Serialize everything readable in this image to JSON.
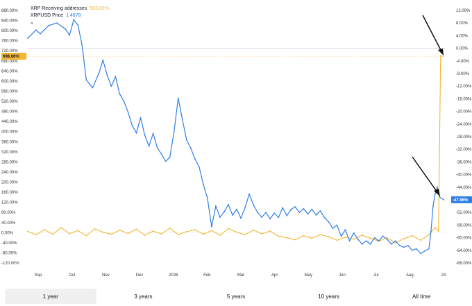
{
  "legend": {
    "series_a_name": "XRP Receiving addresses",
    "series_a_value": "503.02%",
    "series_b_name": "XRPUSD Price",
    "series_b_value": "1.4878",
    "collapse_glyph": "^"
  },
  "colors": {
    "series_a": "#f2b632",
    "series_b": "#2f7ee6",
    "arrow": "#111111",
    "tab_active_bg": "#f0f0f0"
  },
  "tabs": [
    {
      "label": "1 year",
      "active": true
    },
    {
      "label": "3 years",
      "active": false
    },
    {
      "label": "5 years",
      "active": false
    },
    {
      "label": "10 years",
      "active": false
    },
    {
      "label": "All time",
      "active": false
    }
  ],
  "chart_data": {
    "type": "line",
    "grid": false,
    "x_labels": [
      "Sep",
      "Oct",
      "Nov",
      "Dec",
      "2026",
      "Feb",
      "Mar",
      "Apr",
      "May",
      "Jun",
      "Jul",
      "Aug",
      "23"
    ],
    "left_axis": {
      "ticks": [
        "880.00%",
        "840.00%",
        "800.00%",
        "760.00%",
        "720.00%",
        "680.00%",
        "640.00%",
        "600.00%",
        "560.00%",
        "520.00%",
        "480.00%",
        "440.00%",
        "400.00%",
        "360.00%",
        "320.00%",
        "280.00%",
        "240.00%",
        "200.00%",
        "160.00%",
        "120.00%",
        "80.00%",
        "40.00%",
        "0.00%",
        "-40.00%",
        "-80.00%",
        "-120.00%"
      ],
      "range": [
        -120,
        880
      ],
      "current_tag": "698.66%"
    },
    "right_axis": {
      "ticks": [
        "12.00%",
        "8.00%",
        "4.00%",
        "0.00%",
        "-4.00%",
        "-8.00%",
        "-12.00%",
        "-16.00%",
        "-20.00%",
        "-24.00%",
        "-28.00%",
        "-32.00%",
        "-36.00%",
        "-40.00%",
        "-44.00%",
        "-48.00%",
        "-52.00%",
        "-56.00%",
        "-60.00%",
        "-64.00%",
        "-68.00%"
      ],
      "range": [
        -68,
        12
      ],
      "current_tag": "-47.96%"
    },
    "series": [
      {
        "name": "XRP Receiving addresses",
        "axis": "left",
        "baseline_pct": 0,
        "points": [
          [
            0,
            5
          ],
          [
            0.02,
            -8
          ],
          [
            0.04,
            12
          ],
          [
            0.06,
            -6
          ],
          [
            0.08,
            20
          ],
          [
            0.1,
            -4
          ],
          [
            0.12,
            8
          ],
          [
            0.14,
            -12
          ],
          [
            0.16,
            15
          ],
          [
            0.18,
            2
          ],
          [
            0.2,
            -6
          ],
          [
            0.22,
            10
          ],
          [
            0.24,
            -3
          ],
          [
            0.26,
            14
          ],
          [
            0.28,
            -10
          ],
          [
            0.3,
            6
          ],
          [
            0.32,
            -5
          ],
          [
            0.34,
            18
          ],
          [
            0.36,
            -8
          ],
          [
            0.38,
            4
          ],
          [
            0.4,
            12
          ],
          [
            0.42,
            -6
          ],
          [
            0.44,
            8
          ],
          [
            0.46,
            -10
          ],
          [
            0.48,
            16
          ],
          [
            0.5,
            2
          ],
          [
            0.52,
            -8
          ],
          [
            0.54,
            10
          ],
          [
            0.56,
            -4
          ],
          [
            0.58,
            6
          ],
          [
            0.6,
            -14
          ],
          [
            0.62,
            -20
          ],
          [
            0.64,
            -28
          ],
          [
            0.66,
            -12
          ],
          [
            0.68,
            -22
          ],
          [
            0.7,
            -8
          ],
          [
            0.72,
            -16
          ],
          [
            0.74,
            -30
          ],
          [
            0.76,
            -18
          ],
          [
            0.78,
            -26
          ],
          [
            0.8,
            -10
          ],
          [
            0.82,
            -22
          ],
          [
            0.84,
            -34
          ],
          [
            0.86,
            -20
          ],
          [
            0.88,
            -40
          ],
          [
            0.9,
            -24
          ],
          [
            0.92,
            -12
          ],
          [
            0.94,
            -30
          ],
          [
            0.96,
            -8
          ],
          [
            0.975,
            20
          ],
          [
            0.983,
            5
          ],
          [
            0.988,
            700
          ],
          [
            0.995,
            698.66
          ]
        ]
      },
      {
        "name": "XRPUSD Price",
        "axis": "right",
        "points": [
          [
            0,
            3.2
          ],
          [
            0.02,
            5.8
          ],
          [
            0.03,
            4.6
          ],
          [
            0.05,
            7.2
          ],
          [
            0.07,
            8.0
          ],
          [
            0.09,
            6.1
          ],
          [
            0.1,
            4.2
          ],
          [
            0.11,
            9.0
          ],
          [
            0.12,
            7.4
          ],
          [
            0.13,
            1.0
          ],
          [
            0.14,
            -10.0
          ],
          [
            0.155,
            -12.5
          ],
          [
            0.17,
            -8.0
          ],
          [
            0.18,
            -3.8
          ],
          [
            0.19,
            -8.5
          ],
          [
            0.2,
            -12.0
          ],
          [
            0.21,
            -9.0
          ],
          [
            0.22,
            -14.5
          ],
          [
            0.23,
            -16.8
          ],
          [
            0.24,
            -20.2
          ],
          [
            0.25,
            -24.5
          ],
          [
            0.26,
            -26.8
          ],
          [
            0.27,
            -22.0
          ],
          [
            0.28,
            -27.5
          ],
          [
            0.29,
            -31.0
          ],
          [
            0.3,
            -27.0
          ],
          [
            0.31,
            -31.5
          ],
          [
            0.32,
            -33.5
          ],
          [
            0.33,
            -35.8
          ],
          [
            0.34,
            -34.5
          ],
          [
            0.35,
            -26.5
          ],
          [
            0.36,
            -15.8
          ],
          [
            0.37,
            -22.5
          ],
          [
            0.38,
            -29.0
          ],
          [
            0.39,
            -31.6
          ],
          [
            0.4,
            -35.0
          ],
          [
            0.41,
            -37.5
          ],
          [
            0.42,
            -43.0
          ],
          [
            0.43,
            -47.5
          ],
          [
            0.44,
            -56.5
          ],
          [
            0.45,
            -50.0
          ],
          [
            0.46,
            -53.5
          ],
          [
            0.47,
            -51.8
          ],
          [
            0.48,
            -49.5
          ],
          [
            0.49,
            -52.8
          ],
          [
            0.5,
            -51.0
          ],
          [
            0.51,
            -53.8
          ],
          [
            0.52,
            -50.5
          ],
          [
            0.53,
            -46.2
          ],
          [
            0.54,
            -49.6
          ],
          [
            0.55,
            -52.0
          ],
          [
            0.56,
            -53.5
          ],
          [
            0.57,
            -52.0
          ],
          [
            0.58,
            -54.0
          ],
          [
            0.59,
            -52.2
          ],
          [
            0.6,
            -53.6
          ],
          [
            0.61,
            -50.5
          ],
          [
            0.62,
            -53.0
          ],
          [
            0.63,
            -51.0
          ],
          [
            0.64,
            -50.2
          ],
          [
            0.65,
            -52.0
          ],
          [
            0.66,
            -50.8
          ],
          [
            0.67,
            -52.5
          ],
          [
            0.68,
            -51.0
          ],
          [
            0.69,
            -52.8
          ],
          [
            0.7,
            -51.5
          ],
          [
            0.71,
            -53.6
          ],
          [
            0.72,
            -55.0
          ],
          [
            0.73,
            -57.0
          ],
          [
            0.74,
            -56.0
          ],
          [
            0.75,
            -59.5
          ],
          [
            0.76,
            -57.5
          ],
          [
            0.77,
            -61.0
          ],
          [
            0.78,
            -58.5
          ],
          [
            0.79,
            -60.5
          ],
          [
            0.8,
            -62.0
          ],
          [
            0.81,
            -61.0
          ],
          [
            0.82,
            -62.0
          ],
          [
            0.83,
            -60.0
          ],
          [
            0.84,
            -61.0
          ],
          [
            0.85,
            -59.5
          ],
          [
            0.86,
            -60.5
          ],
          [
            0.87,
            -62.0
          ],
          [
            0.88,
            -61.0
          ],
          [
            0.89,
            -62.5
          ],
          [
            0.9,
            -63.0
          ],
          [
            0.91,
            -62.5
          ],
          [
            0.92,
            -64.0
          ],
          [
            0.93,
            -63.5
          ],
          [
            0.94,
            -65.0
          ],
          [
            0.95,
            -64.2
          ],
          [
            0.96,
            -63.5
          ],
          [
            0.965,
            -58.0
          ],
          [
            0.97,
            -50.0
          ],
          [
            0.975,
            -46.0
          ],
          [
            0.98,
            -44.0
          ],
          [
            0.985,
            -47.0
          ],
          [
            0.995,
            -47.96
          ]
        ]
      }
    ]
  }
}
